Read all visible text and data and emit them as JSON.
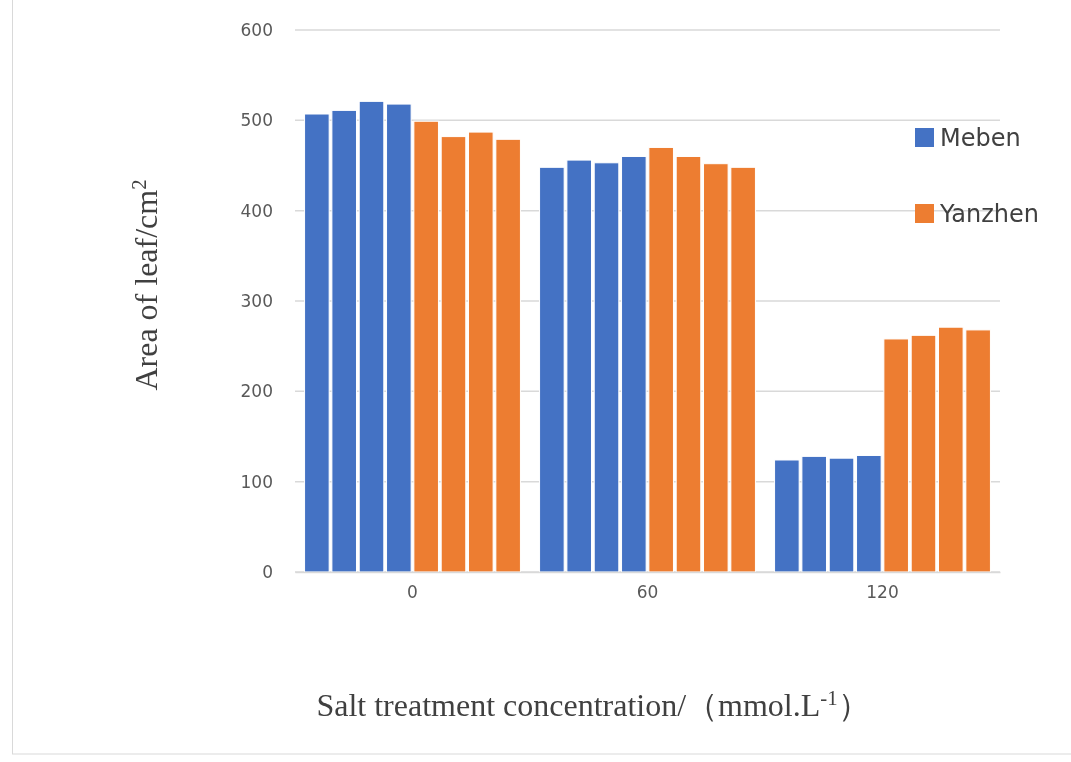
{
  "chart_data": {
    "type": "bar",
    "xlabel": "Salt treatment concentration/（mmol.L$^{-1}$）",
    "ylabel": "Area of leaf/cm$^{2}$",
    "categories": [
      "0",
      "60",
      "120"
    ],
    "series": [
      {
        "name": "Meben",
        "color": "#4472c4",
        "values": [
          507,
          448,
          124
        ]
      },
      {
        "color": "#4472c4",
        "values": [
          511,
          456,
          128
        ]
      },
      {
        "color": "#4472c4",
        "values": [
          521,
          453,
          126
        ]
      },
      {
        "color": "#4472c4",
        "values": [
          518,
          460,
          129
        ]
      },
      {
        "name": "Yanzhen",
        "color": "#ed7d31",
        "values": [
          499,
          470,
          258
        ]
      },
      {
        "color": "#ed7d31",
        "values": [
          482,
          460,
          262
        ]
      },
      {
        "color": "#ed7d31",
        "values": [
          487,
          452,
          271
        ]
      },
      {
        "color": "#ed7d31",
        "values": [
          479,
          448,
          268
        ]
      }
    ],
    "ylim": [
      0,
      600
    ],
    "yticks": [
      0,
      100,
      200,
      300,
      400,
      500,
      600
    ],
    "grid": "y",
    "legend": "right"
  }
}
